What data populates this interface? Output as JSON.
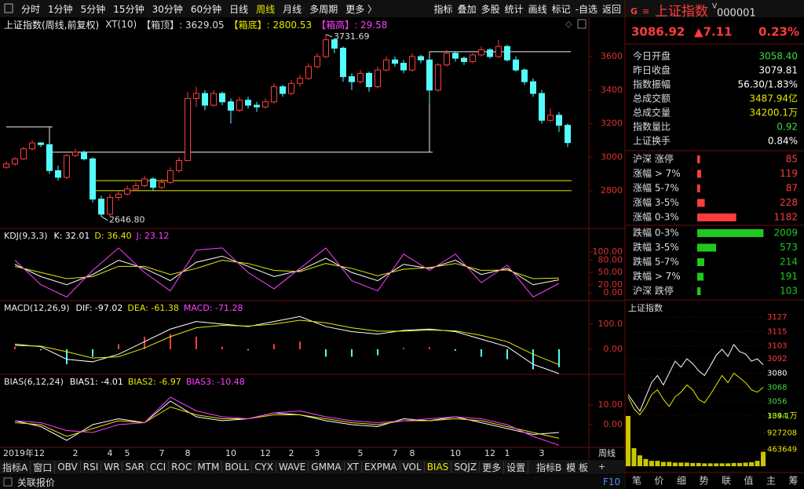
{
  "toolbar": {
    "periods": [
      "分时",
      "1分钟",
      "5分钟",
      "15分钟",
      "30分钟",
      "60分钟",
      "日线",
      "周线",
      "月线",
      "多周期",
      "更多 〉"
    ],
    "active_period": 7,
    "tools": [
      "指标",
      "叠加",
      "多股",
      "统计",
      "画线",
      "标记",
      "-自选",
      "返回"
    ]
  },
  "main_chart": {
    "title": "上证指数(周线,前复权)",
    "legend": [
      {
        "text": "XT(10)",
        "color": "#dddddd"
      },
      {
        "text": "【箱顶】: 3629.05",
        "color": "#dddddd"
      },
      {
        "text": "【箱底】: 2800.53",
        "color": "#e8e800"
      },
      {
        "text": "【箱高】: 29.58",
        "color": "#ff40ff"
      }
    ],
    "categories": [
      "2019年12",
      null,
      null,
      null,
      null,
      null,
      null,
      null,
      "2",
      null,
      null,
      null,
      "4",
      null,
      "5",
      null,
      null,
      null,
      "7",
      null,
      null,
      "8",
      null,
      null,
      null,
      null,
      "10",
      null,
      null,
      null,
      "12",
      null,
      null,
      "2",
      null,
      null,
      "3",
      null,
      null,
      null,
      null,
      "5",
      null,
      null,
      null,
      "7",
      null,
      "8",
      null,
      null,
      null,
      null,
      "10",
      null,
      null,
      null,
      "12",
      null,
      "1",
      null,
      null,
      null,
      "3",
      null,
      null,
      null
    ],
    "candles": [
      [
        2940,
        2975,
        2930,
        2960
      ],
      [
        2960,
        3000,
        2950,
        2990
      ],
      [
        2990,
        3060,
        2985,
        3050
      ],
      [
        3050,
        3100,
        3040,
        3085
      ],
      [
        3085,
        3090,
        3060,
        3075
      ],
      [
        3075,
        3080,
        2900,
        2920
      ],
      [
        2920,
        2950,
        2860,
        2880
      ],
      [
        2880,
        3020,
        2870,
        3010
      ],
      [
        3010,
        3050,
        3000,
        3030
      ],
      [
        3030,
        3040,
        2980,
        2990
      ],
      [
        2990,
        3000,
        2730,
        2750
      ],
      [
        2750,
        2770,
        2646.8,
        2660
      ],
      [
        2660,
        2780,
        2650,
        2760
      ],
      [
        2760,
        2800,
        2740,
        2780
      ],
      [
        2780,
        2830,
        2770,
        2810
      ],
      [
        2810,
        2850,
        2800,
        2830
      ],
      [
        2830,
        2890,
        2820,
        2870
      ],
      [
        2870,
        2880,
        2800,
        2820
      ],
      [
        2820,
        2870,
        2810,
        2850
      ],
      [
        2850,
        2940,
        2840,
        2920
      ],
      [
        2920,
        3000,
        2910,
        2980
      ],
      [
        2980,
        3390,
        2975,
        3350
      ],
      [
        3350,
        3420,
        3300,
        3380
      ],
      [
        3380,
        3400,
        3280,
        3310
      ],
      [
        3310,
        3400,
        3300,
        3380
      ],
      [
        3380,
        3390,
        3310,
        3330
      ],
      [
        3330,
        3350,
        3200,
        3280
      ],
      [
        3280,
        3360,
        3270,
        3340
      ],
      [
        3340,
        3360,
        3290,
        3310
      ],
      [
        3310,
        3330,
        3270,
        3300
      ],
      [
        3300,
        3350,
        3290,
        3330
      ],
      [
        3330,
        3440,
        3320,
        3420
      ],
      [
        3420,
        3430,
        3360,
        3380
      ],
      [
        3380,
        3460,
        3370,
        3440
      ],
      [
        3440,
        3490,
        3420,
        3470
      ],
      [
        3470,
        3560,
        3460,
        3540
      ],
      [
        3540,
        3620,
        3530,
        3600
      ],
      [
        3600,
        3731.69,
        3590,
        3700
      ],
      [
        3700,
        3710,
        3620,
        3650
      ],
      [
        3650,
        3660,
        3450,
        3480
      ],
      [
        3480,
        3500,
        3400,
        3450
      ],
      [
        3450,
        3520,
        3440,
        3500
      ],
      [
        3500,
        3510,
        3390,
        3420
      ],
      [
        3420,
        3540,
        3410,
        3520
      ],
      [
        3520,
        3600,
        3510,
        3580
      ],
      [
        3580,
        3600,
        3540,
        3560
      ],
      [
        3560,
        3580,
        3500,
        3520
      ],
      [
        3520,
        3620,
        3510,
        3600
      ],
      [
        3600,
        3610,
        3560,
        3580
      ],
      [
        3580,
        3590,
        3320,
        3400
      ],
      [
        3400,
        3560,
        3390,
        3550
      ],
      [
        3550,
        3640,
        3540,
        3620
      ],
      [
        3620,
        3630,
        3570,
        3590
      ],
      [
        3590,
        3600,
        3550,
        3570
      ],
      [
        3570,
        3620,
        3560,
        3610
      ],
      [
        3610,
        3660,
        3600,
        3640
      ],
      [
        3640,
        3650,
        3590,
        3600
      ],
      [
        3600,
        3700,
        3590,
        3660
      ],
      [
        3660,
        3670,
        3570,
        3580
      ],
      [
        3580,
        3600,
        3510,
        3520
      ],
      [
        3520,
        3530,
        3430,
        3450
      ],
      [
        3450,
        3470,
        3360,
        3380
      ],
      [
        3380,
        3400,
        3200,
        3220
      ],
      [
        3220,
        3290,
        3210,
        3250
      ],
      [
        3250,
        3270,
        3150,
        3190
      ],
      [
        3190,
        3200,
        3060,
        3086.92
      ]
    ],
    "ylim": [
      2580,
      3750
    ],
    "yticks": [
      2800,
      3000,
      3200,
      3400,
      3600
    ],
    "high_label": "3731.69",
    "low_label": "2646.80",
    "box_steps": [
      {
        "start": 0,
        "end": 5,
        "value": 3180
      },
      {
        "start": 5,
        "end": 49,
        "value": 3030
      },
      {
        "start": 49,
        "end": 65,
        "value": 3629.05
      }
    ],
    "support_lines": {
      "start": 10,
      "values": [
        2860,
        2800.53
      ],
      "color": "#e8e800"
    },
    "up_color": "#ff3c3c",
    "down_color": "#54fcfc",
    "period_label": "周线"
  },
  "kdj": {
    "title": "KDJ(9,3,3)",
    "ylim": [
      -17,
      156
    ],
    "yticks": [
      {
        "value": 100,
        "label": "100.00"
      },
      {
        "value": 80,
        "label": "80.00"
      },
      {
        "value": 50,
        "label": "50.00"
      },
      {
        "value": 20,
        "label": "20.00"
      },
      {
        "value": 0,
        "label": "0.00"
      }
    ],
    "series": [
      {
        "name": "K: 32.01",
        "color": "#ffffff",
        "values": [
          70,
          40,
          20,
          45,
          80,
          60,
          30,
          75,
          90,
          65,
          40,
          55,
          85,
          50,
          30,
          70,
          60,
          80,
          45,
          60,
          20,
          32.01
        ]
      },
      {
        "name": "D: 36.40",
        "color": "#e8e800",
        "values": [
          65,
          50,
          35,
          40,
          65,
          65,
          45,
          60,
          80,
          72,
          55,
          52,
          72,
          60,
          42,
          58,
          62,
          72,
          55,
          56,
          35,
          36.4
        ]
      },
      {
        "name": "J: 23.12",
        "color": "#ff40ff",
        "values": [
          80,
          20,
          -10,
          55,
          110,
          50,
          5,
          105,
          110,
          50,
          10,
          60,
          110,
          30,
          5,
          95,
          55,
          95,
          25,
          68,
          -10,
          23.12
        ]
      }
    ]
  },
  "macd": {
    "title": "MACD(12,26,9)",
    "ylim": [
      -97,
      190
    ],
    "yticks": [
      {
        "value": 100,
        "label": "100.0"
      },
      {
        "value": 0,
        "label": "0.00"
      }
    ],
    "series": [
      {
        "name": "DIF: -97.02",
        "color": "#ffffff",
        "values": [
          20,
          10,
          -40,
          -50,
          -20,
          30,
          80,
          110,
          100,
          90,
          110,
          130,
          90,
          70,
          60,
          75,
          80,
          70,
          40,
          10,
          -60,
          -97.02
        ]
      },
      {
        "name": "DEA: -61.38",
        "color": "#e8e800",
        "values": [
          15,
          12,
          -10,
          -35,
          -30,
          5,
          50,
          85,
          95,
          92,
          100,
          115,
          105,
          85,
          72,
          72,
          76,
          73,
          55,
          30,
          -20,
          -61.38
        ]
      }
    ],
    "bars": {
      "name": "MACD: -71.28",
      "color": "#ff40ff",
      "values": [
        10,
        -4,
        -60,
        -30,
        20,
        50,
        60,
        50,
        10,
        -4,
        20,
        30,
        -30,
        -30,
        -24,
        6,
        8,
        -6,
        -30,
        -40,
        -80,
        -71.28
      ]
    }
  },
  "bias": {
    "title": "BIAS(6,12,24)",
    "ylim": [
      -11.6,
      25.2
    ],
    "yticks": [
      {
        "value": 10,
        "label": "10.00"
      },
      {
        "value": 0,
        "label": "0.00"
      }
    ],
    "series": [
      {
        "name": "BIAS1: -4.01",
        "color": "#ffffff",
        "values": [
          2,
          -1,
          -8,
          0,
          3,
          1,
          12,
          4,
          2,
          3,
          6,
          5,
          2,
          0,
          -1,
          3,
          2,
          4,
          1,
          -2,
          -5,
          -4.01
        ]
      },
      {
        "name": "BIAS2: -6.97",
        "color": "#e8e800",
        "values": [
          1,
          0,
          -6,
          -2,
          2,
          1,
          9,
          5,
          3,
          3,
          5,
          5,
          3,
          1,
          0,
          2,
          2,
          3,
          2,
          -1,
          -4,
          -6.97
        ]
      },
      {
        "name": "BIAS3: -10.48",
        "color": "#ff40ff",
        "values": [
          2,
          1,
          -3,
          -4,
          0,
          1,
          14,
          7,
          4,
          3,
          6,
          7,
          4,
          2,
          1,
          2,
          3,
          4,
          3,
          0,
          -6,
          -10.48
        ]
      }
    ]
  },
  "tabs": {
    "items": [
      "指标A",
      "窗口",
      "OBV",
      "RSI",
      "WR",
      "SAR",
      "CCI",
      "ROC",
      "MTM",
      "BOLL",
      "CYX",
      "WAVE",
      "GMMA",
      "XT",
      "EXPMA",
      "VOL",
      "BIAS",
      "SQJZ",
      "更多",
      "设置"
    ],
    "active": 16,
    "right": [
      "指标B",
      "模 板"
    ]
  },
  "status": {
    "left": "关联报价",
    "right": "F10"
  },
  "quote": {
    "logo": "G",
    "menu": "≡",
    "name": "上证指数",
    "mark": "V",
    "code": "000001",
    "price": "3086.92",
    "change": "▲7.11",
    "pct": "0.23%",
    "rows": [
      {
        "label": "今日开盘",
        "value": "3058.40",
        "color": "#3cdc3c"
      },
      {
        "label": "昨日收盘",
        "value": "3079.81",
        "color": "#ffffff"
      },
      {
        "label": "指数振幅",
        "value": "56.30/1.83%",
        "color": "#ffffff"
      },
      {
        "label": "总成交额",
        "value": "3487.94亿",
        "color": "#e8e800"
      },
      {
        "label": "总成交量",
        "value": "34200.1万",
        "color": "#e8e800"
      },
      {
        "label": "指数量比",
        "value": "0.92",
        "color": "#3cdc3c"
      },
      {
        "label": "上证换手",
        "value": "0.84%",
        "color": "#ffffff"
      }
    ],
    "up": {
      "color": "#ff3c3c",
      "labels": [
        "沪深 涨停",
        "涨幅 > 7%",
        "涨幅 5-7%",
        "涨幅 3-5%",
        "涨幅 0-3%"
      ],
      "values": [
        85,
        119,
        87,
        228,
        1182
      ]
    },
    "down": {
      "color": "#1ec81e",
      "labels": [
        "跌幅 0-3%",
        "跌幅 3-5%",
        "跌幅 5-7%",
        "跌幅 > 7%",
        "沪深 跌停"
      ],
      "values": [
        2009,
        573,
        214,
        191,
        103
      ]
    }
  },
  "intraday": {
    "title": "上证指数",
    "ylim": [
      3040,
      3131
    ],
    "yticks": [
      3127,
      3115,
      3103,
      3092,
      3080,
      3068,
      3056,
      3044
    ],
    "ytick_colors": [
      "#ff3c3c",
      "#ff3c3c",
      "#ff3c3c",
      "#ff3c3c",
      "#ffffff",
      "#3cdc3c",
      "#3cdc3c",
      "#3cdc3c"
    ],
    "series": [
      {
        "color": "#ffffff",
        "values": [
          3062,
          3055,
          3048,
          3060,
          3072,
          3078,
          3070,
          3080,
          3090,
          3085,
          3092,
          3088,
          3082,
          3078,
          3086,
          3095,
          3100,
          3094,
          3104,
          3098,
          3096,
          3090,
          3092,
          3087
        ]
      },
      {
        "color": "#e8e800",
        "values": [
          3060,
          3050,
          3045,
          3052,
          3062,
          3066,
          3058,
          3052,
          3060,
          3064,
          3070,
          3066,
          3058,
          3055,
          3062,
          3070,
          3078,
          3072,
          3080,
          3076,
          3072,
          3066,
          3064,
          3068
        ]
      }
    ],
    "volume": {
      "color": "#c8c800",
      "ylim": [
        0,
        1391000
      ],
      "yticks": [
        {
          "value": 1391000,
          "label": "139.1万"
        },
        {
          "value": 927208,
          "label": "927208"
        },
        {
          "value": 463649,
          "label": "463649"
        }
      ],
      "values": [
        1391000,
        500000,
        300000,
        200000,
        150000,
        150000,
        120000,
        120000,
        100000,
        100000,
        100000,
        90000,
        90000,
        80000,
        80000,
        80000,
        80000,
        80000,
        90000,
        90000,
        100000,
        110000,
        150000,
        400000
      ]
    }
  },
  "nav": [
    "笔",
    "价",
    "细",
    "势",
    "联",
    "值",
    "主",
    "筹"
  ]
}
